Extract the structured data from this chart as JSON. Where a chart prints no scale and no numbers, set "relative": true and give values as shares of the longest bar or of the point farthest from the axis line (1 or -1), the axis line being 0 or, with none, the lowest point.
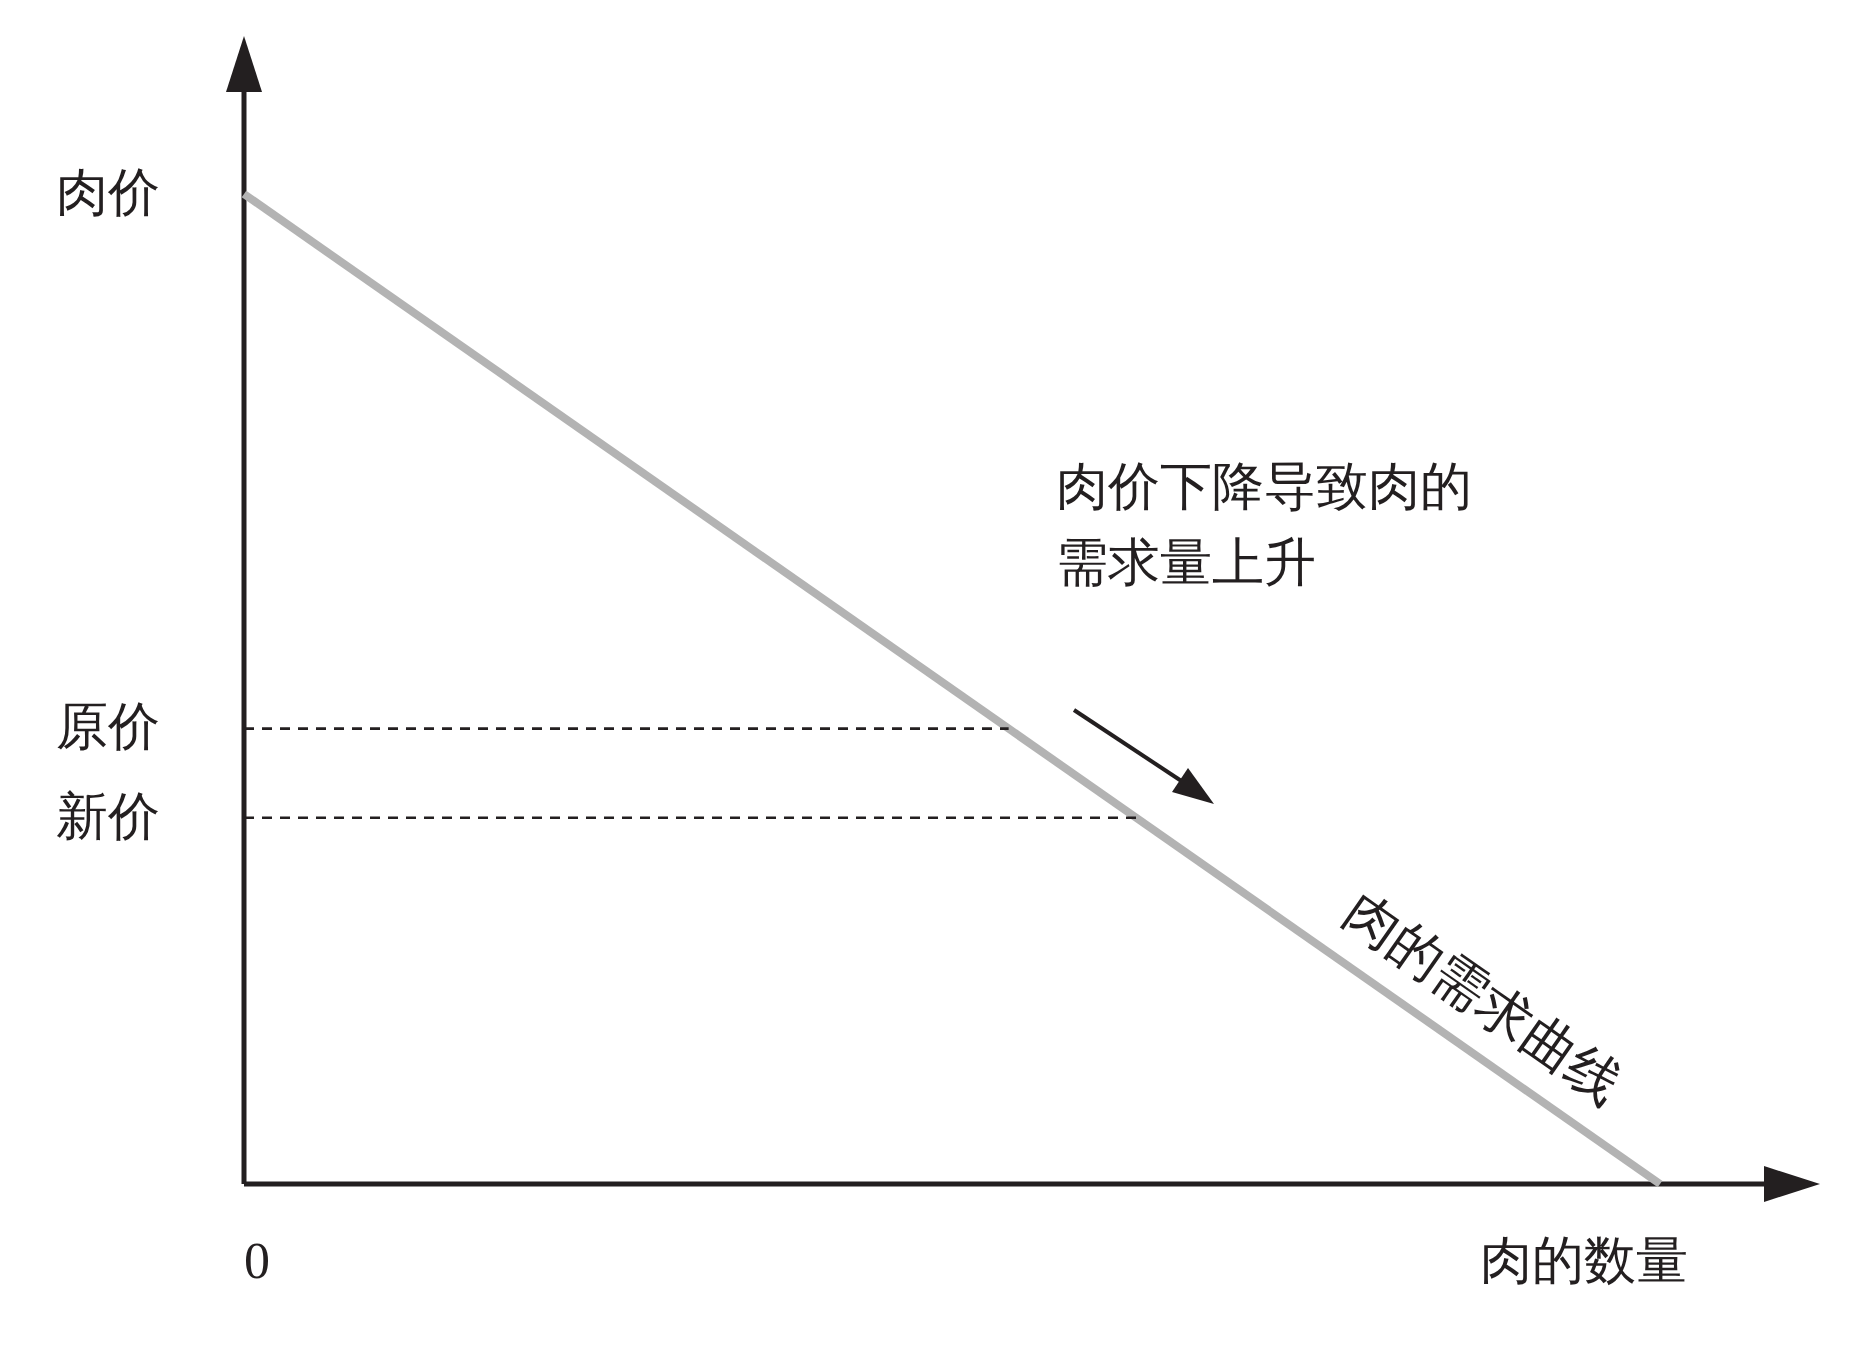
{
  "chart_data": {
    "type": "line",
    "relative": true,
    "xlabel": "肉的数量",
    "ylabel": "肉价",
    "categories": [
      null,
      null
    ],
    "series": [
      {
        "name": "肉的需求曲线",
        "color": "#b3b3b3",
        "values": [
          1,
          0
        ]
      }
    ],
    "ref_lines": [
      {
        "axis": "y",
        "value": 0.46,
        "label": "原价",
        "line_style": "dashed",
        "color": "#231f20"
      },
      {
        "axis": "y",
        "value": 0.37,
        "label": "新价",
        "line_style": "dashed",
        "color": "#231f20"
      }
    ],
    "annotations": [
      "0",
      "肉价下降导致肉的需求量上升"
    ]
  }
}
